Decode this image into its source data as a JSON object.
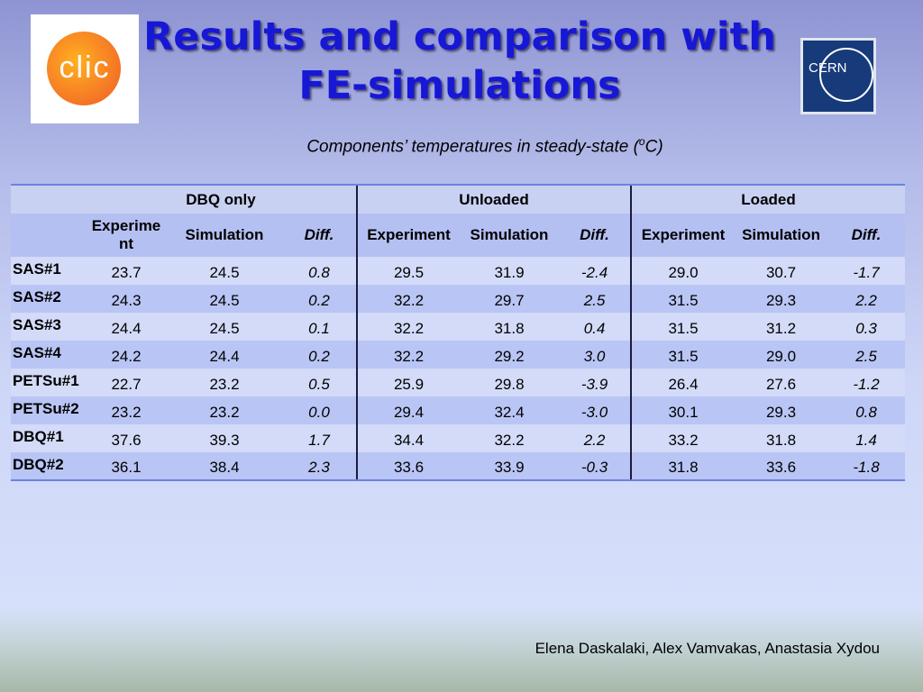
{
  "header": {
    "title": [
      "Results and comparison with",
      "FE-simulations"
    ],
    "left_logo": "clic",
    "right_logo": "CERN"
  },
  "subtitle": {
    "before": "Components’ temperatures in steady-state (",
    "superscript": "o",
    "after": "C)"
  },
  "table": {
    "groups": [
      "DBQ only",
      "Unloaded",
      "Loaded"
    ],
    "columns": [
      "Experiment",
      "Simulation",
      "Diff.",
      "Experiment",
      "Simulation",
      "Diff.",
      "Experiment",
      "Simulation",
      "Diff."
    ],
    "rows": [
      [
        "SAS#1",
        "23.7",
        "24.5",
        "0.8",
        "29.5",
        "31.9",
        "-2.4",
        "29.0",
        "30.7",
        "-1.7"
      ],
      [
        "SAS#2",
        "24.3",
        "24.5",
        "0.2",
        "32.2",
        "29.7",
        "2.5",
        "31.5",
        "29.3",
        "2.2"
      ],
      [
        "SAS#3",
        "24.4",
        "24.5",
        "0.1",
        "32.2",
        "31.8",
        "0.4",
        "31.5",
        "31.2",
        "0.3"
      ],
      [
        "SAS#4",
        "24.2",
        "24.4",
        "0.2",
        "32.2",
        "29.2",
        "3.0",
        "31.5",
        "29.0",
        "2.5"
      ],
      [
        "PETSu#1",
        "22.7",
        "23.2",
        "0.5",
        "25.9",
        "29.8",
        "-3.9",
        "26.4",
        "27.6",
        "-1.2"
      ],
      [
        "PETSu#2",
        "23.2",
        "23.2",
        "0.0",
        "29.4",
        "32.4",
        "-3.0",
        "30.1",
        "29.3",
        "0.8"
      ],
      [
        "DBQ#1",
        "37.6",
        "39.3",
        "1.7",
        "34.4",
        "32.2",
        "2.2",
        "33.2",
        "31.8",
        "1.4"
      ],
      [
        "DBQ#2",
        "36.1",
        "38.4",
        "2.3",
        "33.6",
        "33.9",
        "-0.3",
        "31.8",
        "33.6",
        "-1.8"
      ]
    ]
  },
  "footer": "Elena Daskalaki, Alex Vamvakas, Anastasia Xydou"
}
